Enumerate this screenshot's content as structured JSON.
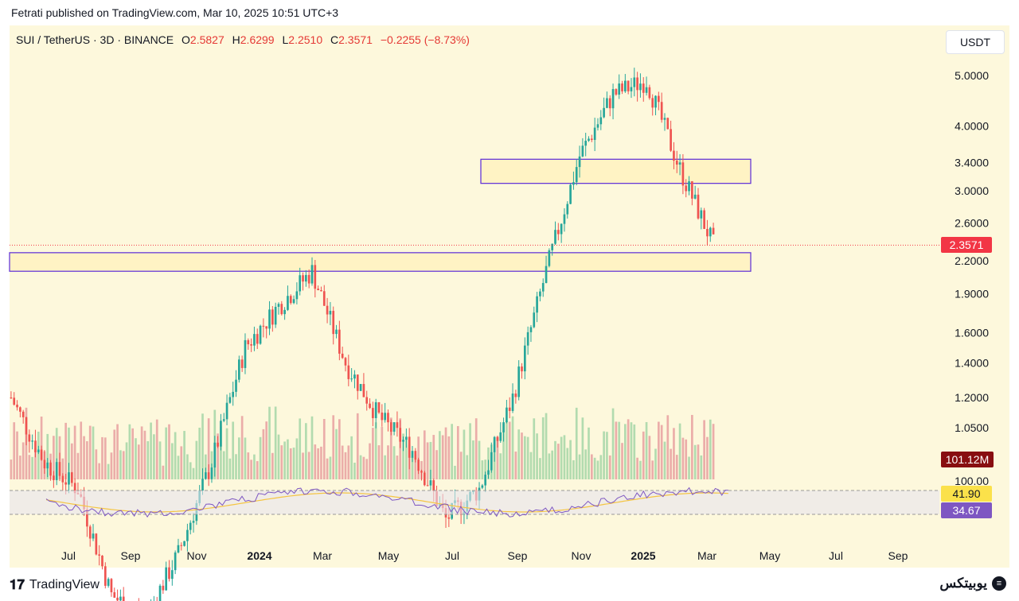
{
  "header": {
    "published": "Fetrati published on TradingView.com, Mar 10, 2025 10:51 UTC+3"
  },
  "legend": {
    "symbol": "SUI / TetherUS · 3D · BINANCE",
    "o_label": "O",
    "o_value": "2.5827",
    "h_label": "H",
    "h_value": "2.6299",
    "l_label": "L",
    "l_value": "2.2510",
    "c_label": "C",
    "c_value": "2.3571",
    "change": "−0.2255 (−8.73%)"
  },
  "currency_button": "USDT",
  "price_axis": {
    "ticks": [
      "5.0000",
      "4.0000",
      "3.4000",
      "3.0000",
      "2.6000",
      "2.2000",
      "1.9000",
      "1.6000",
      "1.4000",
      "1.2000",
      "1.0500",
      "100.00"
    ],
    "tick_values": [
      5.0,
      4.0,
      3.4,
      3.0,
      2.6,
      2.2,
      1.9,
      1.6,
      1.4,
      1.2,
      1.05
    ],
    "current_price": "2.3571",
    "current_price_value": 2.3571,
    "volume_label": "101.12M",
    "rsi_ma_label": "41.90",
    "rsi_label": "34.67"
  },
  "time_axis": {
    "labels": [
      "Jul",
      "Sep",
      "Nov",
      "2024",
      "Mar",
      "May",
      "Jul",
      "Sep",
      "Nov",
      "2025",
      "Mar",
      "May",
      "Jul",
      "Sep"
    ],
    "bold": [
      false,
      false,
      false,
      true,
      false,
      false,
      false,
      false,
      false,
      true,
      false,
      false,
      false,
      false
    ]
  },
  "zones": [
    {
      "name": "resistance-zone",
      "low": 3.1,
      "high": 3.45
    },
    {
      "name": "support-zone",
      "low": 2.1,
      "high": 2.28
    }
  ],
  "colors": {
    "up": "#26a69a",
    "down": "#ef5350",
    "zone_fill": "#fff3c4",
    "zone_border": "#5b2bd8",
    "rsi_line": "#7e57c2",
    "rsi_ma": "#f5c542",
    "price_label": "#f23645",
    "volume_label": "#880e10",
    "rsi_ma_label_bg": "#fbe14a",
    "rsi_label_bg": "#7e57c2"
  },
  "footer": {
    "brand": "TradingView",
    "brand_right": "يوبيتكس"
  },
  "chart_data": {
    "type": "candlestick",
    "interval": "3D",
    "scale": "log",
    "anchor_points": [
      {
        "date": "2023-06",
        "price": 1.2
      },
      {
        "date": "2023-07",
        "price": 0.9
      },
      {
        "date": "2023-08",
        "price": 0.8
      },
      {
        "date": "2023-09",
        "price": 0.5
      },
      {
        "date": "2023-10",
        "price": 0.45
      },
      {
        "date": "2023-11",
        "price": 0.6
      },
      {
        "date": "2023-12",
        "price": 0.9
      },
      {
        "date": "2024-01",
        "price": 1.5
      },
      {
        "date": "2024-02",
        "price": 1.8
      },
      {
        "date": "2024-03",
        "price": 2.1
      },
      {
        "date": "2024-04",
        "price": 1.4
      },
      {
        "date": "2024-05",
        "price": 1.1
      },
      {
        "date": "2024-06",
        "price": 0.95
      },
      {
        "date": "2024-07",
        "price": 0.7
      },
      {
        "date": "2024-08",
        "price": 0.8
      },
      {
        "date": "2024-09",
        "price": 1.2
      },
      {
        "date": "2024-10",
        "price": 2.1
      },
      {
        "date": "2024-11",
        "price": 3.5
      },
      {
        "date": "2024-12",
        "price": 4.6
      },
      {
        "date": "2025-01",
        "price": 4.9
      },
      {
        "date": "2025-02",
        "price": 3.3
      },
      {
        "date": "2025-03",
        "price": 2.36
      }
    ]
  }
}
